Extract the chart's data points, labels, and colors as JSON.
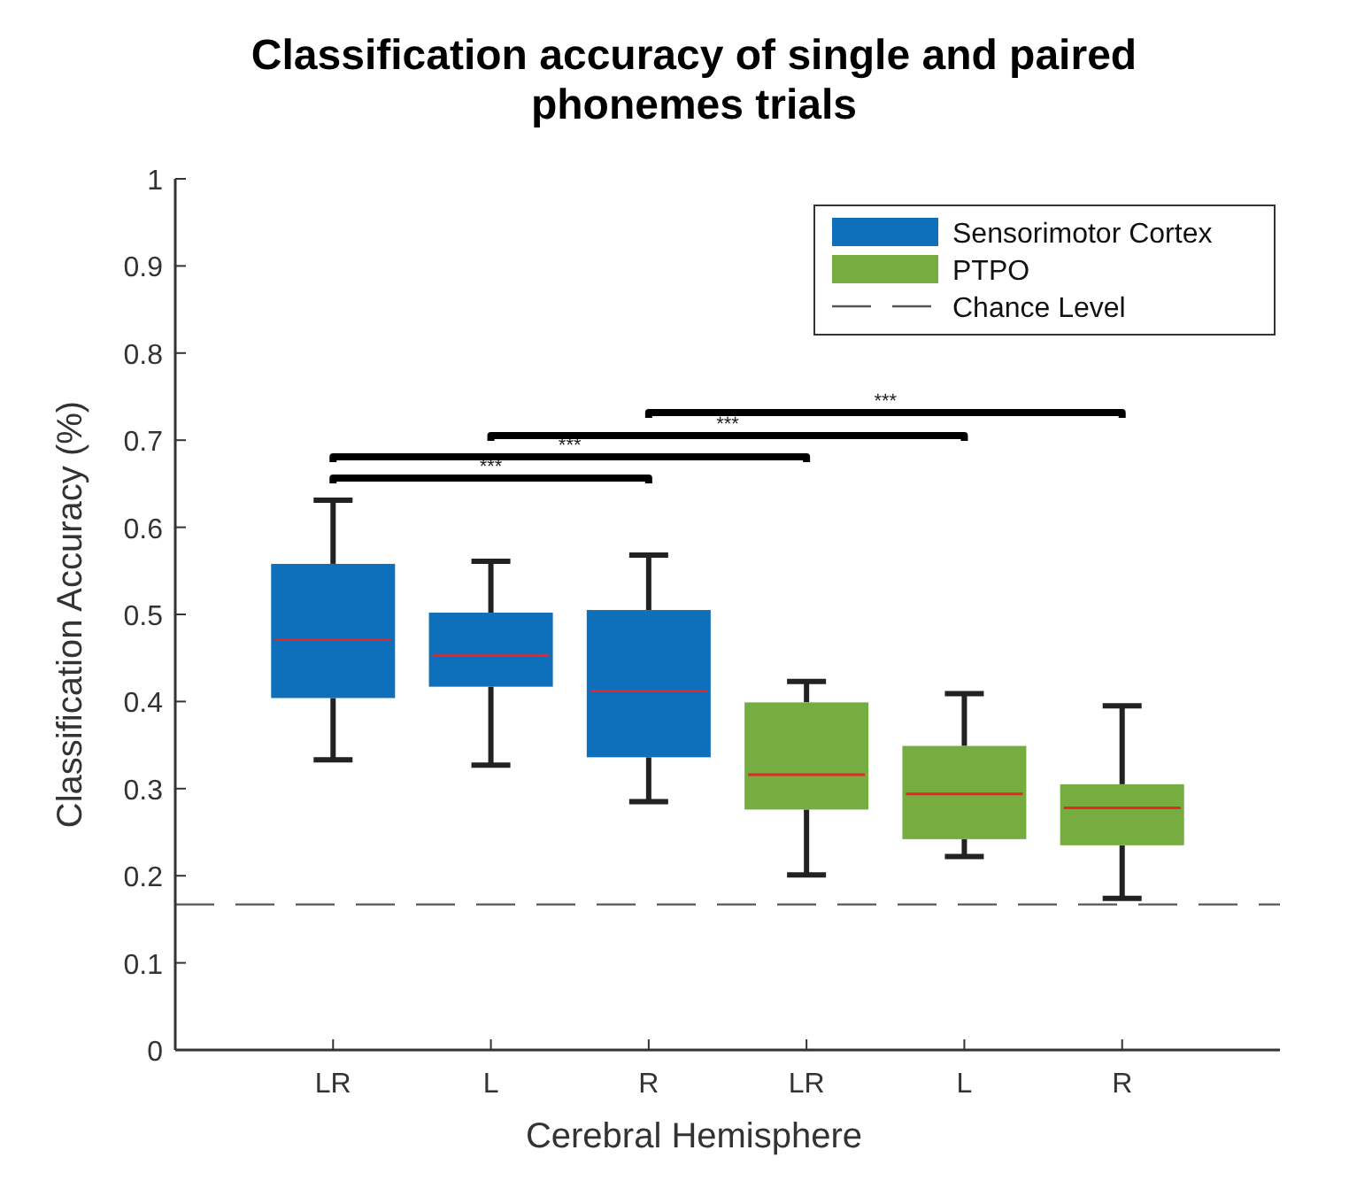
{
  "chart_data": {
    "type": "box",
    "title": "Classification accuracy of single and paired phonemes trials",
    "xlabel": "Cerebral Hemisphere",
    "ylabel": "Classification Accuracy (%)",
    "categories": [
      "LR",
      "L",
      "R",
      "LR",
      "L",
      "R"
    ],
    "series": [
      {
        "name": "Sensorimotor Cortex",
        "color": "#0e6fba",
        "boxes": [
          {
            "low": 0.333,
            "q1": 0.404,
            "median": 0.471,
            "q3": 0.558,
            "high": 0.631
          },
          {
            "low": 0.327,
            "q1": 0.417,
            "median": 0.453,
            "q3": 0.502,
            "high": 0.561
          },
          {
            "low": 0.285,
            "q1": 0.336,
            "median": 0.412,
            "q3": 0.505,
            "high": 0.568
          },
          null,
          null,
          null
        ]
      },
      {
        "name": "PTPO",
        "color": "#77ac41",
        "boxes": [
          null,
          null,
          null,
          {
            "low": 0.201,
            "q1": 0.276,
            "median": 0.316,
            "q3": 0.399,
            "high": 0.423
          },
          {
            "low": 0.222,
            "q1": 0.242,
            "median": 0.294,
            "q3": 0.349,
            "high": 0.409
          },
          {
            "low": 0.174,
            "q1": 0.235,
            "median": 0.278,
            "q3": 0.305,
            "high": 0.395
          }
        ]
      }
    ],
    "ref_lines": [
      {
        "axis": "y",
        "value": 0.167,
        "label": "Chance Level",
        "color": "#555555",
        "line_style": "dashed"
      }
    ],
    "annotations": [
      "***",
      "***",
      "***",
      "***"
    ],
    "ylim": [
      0,
      1
    ],
    "yticks": [
      0,
      0.1,
      0.2,
      0.3,
      0.4,
      0.5,
      0.6,
      0.7,
      0.8,
      0.9,
      1
    ],
    "legend": "top right",
    "grid": false
  }
}
